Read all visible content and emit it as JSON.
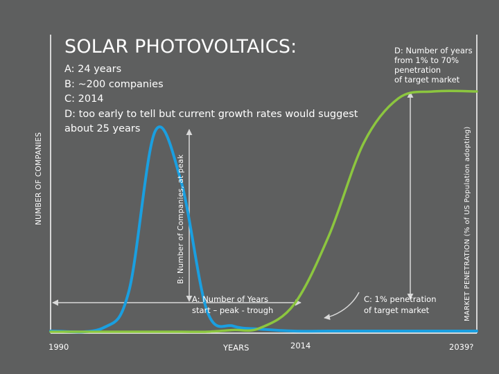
{
  "slide": {
    "title": "SOLAR PHOTOVOLTAICS:",
    "notes": [
      "A: 24 years",
      "B: ~200 companies",
      "C: 2014",
      "D: too early to tell but current growth rates would suggest",
      "about 25 years"
    ]
  },
  "colors": {
    "background": "#5e5f5f",
    "blue_curve": "#1a9fe0",
    "green_curve": "#8cc63f",
    "arrow": "#d9d9d9",
    "axis": "#ffffff"
  },
  "chart_data": {
    "type": "line",
    "title": "SOLAR PHOTOVOLTAICS:",
    "xlabel": "YEARS",
    "ylabel_left": "NUMBER OF COMPANIES",
    "ylabel_right": "MARKET PENETRATION (% of US Population adopting)",
    "x_ticks": [
      "1990",
      "YEARS",
      "2014",
      "2039?"
    ],
    "x": [
      1990,
      1996,
      1999,
      2002,
      2005,
      2008,
      2011,
      2014,
      2018,
      2022,
      2026,
      2030,
      2034,
      2039
    ],
    "series": [
      {
        "name": "Number of Companies",
        "color": "#1a9fe0",
        "values": [
          0,
          3,
          40,
          200,
          150,
          20,
          5,
          2,
          0,
          0,
          0,
          0,
          0,
          0
        ]
      },
      {
        "name": "Market Penetration",
        "color": "#8cc63f",
        "values": [
          0,
          0,
          0,
          0,
          0,
          0,
          0.5,
          1,
          8,
          28,
          55,
          68,
          70,
          70
        ]
      }
    ],
    "annotations": {
      "A": [
        "A: Number of Years",
        "start – peak - trough"
      ],
      "B": "B: Number of Companies, at peak",
      "C": [
        "C: 1% penetration",
        "of target market"
      ],
      "D": [
        "D: Number of years",
        "from 1% to 70%",
        "penetration",
        "of target market"
      ]
    }
  }
}
